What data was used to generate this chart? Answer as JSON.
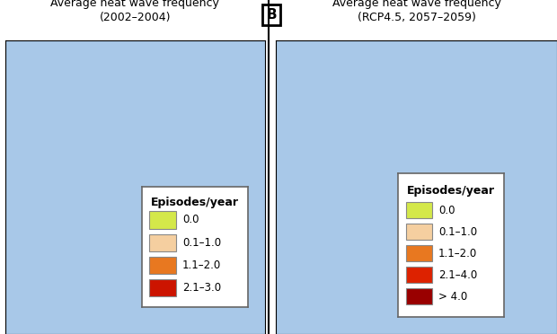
{
  "panel_A_title_line1": "Average heat wave frequency",
  "panel_A_title_line2": "(2002–2004)",
  "panel_B_title_line1": "Average heat wave frequency",
  "panel_B_title_line2": "(RCP4.5, 2057–2059)",
  "panel_B_label": "B",
  "legend_title": "Episodes/year",
  "legend_A": {
    "labels": [
      "0.0",
      "0.1–1.0",
      "1.1–2.0",
      "2.1–3.0"
    ],
    "colors": [
      "#d4e84a",
      "#f5cfa0",
      "#e87820",
      "#cc1400"
    ]
  },
  "legend_B": {
    "labels": [
      "0.0",
      "0.1–1.0",
      "1.1–2.0",
      "2.1–4.0",
      "> 4.0"
    ],
    "colors": [
      "#d4e84a",
      "#f5cfa0",
      "#e87820",
      "#dd2200",
      "#990000"
    ]
  },
  "water_color": "#a8c8e8",
  "bg_color": "#ffffff",
  "state_edge_color": "#555555",
  "county_edge_color": "#888888",
  "title_fontsize": 9.0,
  "legend_fontsize": 8.5,
  "legend_title_fontsize": 9.0,
  "panel_label_fontsize": 11,
  "map_xlim_A": [
    -100,
    -65
  ],
  "map_ylim_A": [
    24.0,
    50.0
  ],
  "map_xlim_B": [
    -100,
    -65
  ],
  "map_ylim_B": [
    24.0,
    50.0
  ],
  "state_colors_A": {
    "ME": "#d4e84a",
    "VT": "#d4e84a",
    "NH": "#d4e84a",
    "MA": "#d4e84a",
    "RI": "#d4e84a",
    "CT": "#d4e84a",
    "NY": "#d4e84a",
    "NJ": "#d4e84a",
    "PA": "#d4e84a",
    "DE": "#d4e84a",
    "MD": "#d4e84a",
    "WV": "#d4e84a",
    "OH": "#d4e84a",
    "MI": "#d4e84a",
    "IN": "#d4e84a",
    "IL": "#d4e84a",
    "WI": "#d4e84a",
    "MN": "#d4e84a",
    "IA": "#d4e84a",
    "MO": "#d4e84a",
    "KY": "#d4e84a",
    "VA": "#f5cfa0",
    "TN": "#f5cfa0",
    "NC": "#f5cfa0",
    "AR": "#f5cfa0",
    "OK": "#d4e84a",
    "KS": "#d4e84a",
    "NE": "#d4e84a",
    "SD": "#d4e84a",
    "ND": "#d4e84a",
    "SC": "#e87820",
    "GA": "#e87820",
    "AL": "#e87820",
    "MS": "#e87820",
    "LA": "#e87820",
    "TX": "#e87820",
    "FL": "#cc1400"
  },
  "state_colors_B": {
    "ME": "#d4e84a",
    "VT": "#d4e84a",
    "NH": "#d4e84a",
    "MA": "#d4e84a",
    "RI": "#d4e84a",
    "CT": "#d4e84a",
    "NY": "#d4e84a",
    "NJ": "#f5cfa0",
    "PA": "#d4e84a",
    "DE": "#f5cfa0",
    "MD": "#f5cfa0",
    "WV": "#f5cfa0",
    "OH": "#d4e84a",
    "MI": "#d4e84a",
    "IN": "#d4e84a",
    "IL": "#d4e84a",
    "WI": "#d4e84a",
    "MN": "#d4e84a",
    "IA": "#d4e84a",
    "MO": "#f5cfa0",
    "KY": "#e87820",
    "VA": "#e87820",
    "TN": "#e87820",
    "NC": "#e87820",
    "AR": "#dd2200",
    "OK": "#dd2200",
    "KS": "#f5cfa0",
    "NE": "#d4e84a",
    "SD": "#d4e84a",
    "ND": "#d4e84a",
    "SC": "#dd2200",
    "GA": "#dd2200",
    "AL": "#dd2200",
    "MS": "#dd2200",
    "LA": "#990000",
    "TX": "#dd2200",
    "FL": "#990000"
  }
}
